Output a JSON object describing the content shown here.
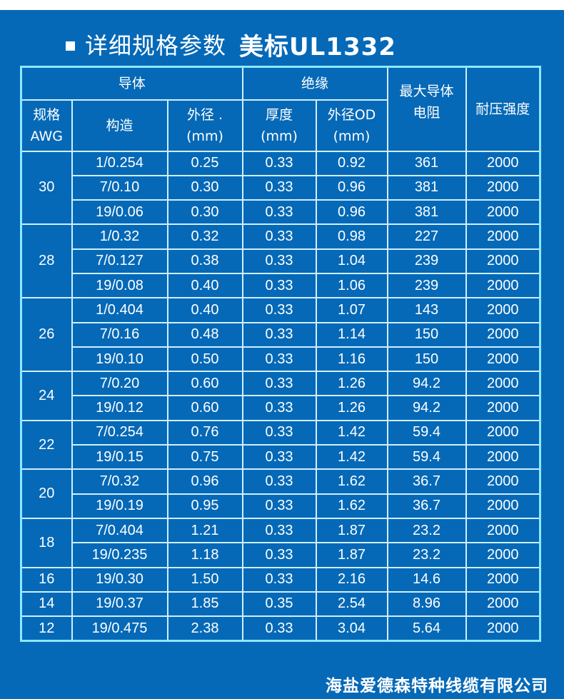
{
  "title": {
    "prefix": "详细规格参数",
    "standard": "美标UL1332"
  },
  "table": {
    "group_headers": {
      "conductor": "导体",
      "insulation": "绝缘",
      "max_resistance_line1": "最大导体",
      "max_resistance_line2": "电阻",
      "withstand_voltage": "耐压强度"
    },
    "sub_headers": {
      "awg_line1": "规格",
      "awg_line2": "AWG",
      "construction": "构造",
      "cond_od_line1": "外径 .",
      "cond_od_line2": "(mm)",
      "thickness_line1": "厚度",
      "thickness_line2": "(mm)",
      "ins_od_line1": "外径OD",
      "ins_od_line2": "(mm)"
    },
    "groups": [
      {
        "awg": "30",
        "rows": [
          {
            "construction": "1/0.254",
            "cond_od": "0.25",
            "thickness": "0.33",
            "ins_od": "0.92",
            "resistance": "361",
            "voltage": "2000"
          },
          {
            "construction": "7/0.10",
            "cond_od": "0.30",
            "thickness": "0.33",
            "ins_od": "0.96",
            "resistance": "381",
            "voltage": "2000"
          },
          {
            "construction": "19/0.06",
            "cond_od": "0.30",
            "thickness": "0.33",
            "ins_od": "0.96",
            "resistance": "381",
            "voltage": "2000"
          }
        ]
      },
      {
        "awg": "28",
        "rows": [
          {
            "construction": "1/0.32",
            "cond_od": "0.32",
            "thickness": "0.33",
            "ins_od": "0.98",
            "resistance": "227",
            "voltage": "2000"
          },
          {
            "construction": "7/0.127",
            "cond_od": "0.38",
            "thickness": "0.33",
            "ins_od": "1.04",
            "resistance": "239",
            "voltage": "2000"
          },
          {
            "construction": "19/0.08",
            "cond_od": "0.40",
            "thickness": "0.33",
            "ins_od": "1.06",
            "resistance": "239",
            "voltage": "2000"
          }
        ]
      },
      {
        "awg": "26",
        "rows": [
          {
            "construction": "1/0.404",
            "cond_od": "0.40",
            "thickness": "0.33",
            "ins_od": "1.07",
            "resistance": "143",
            "voltage": "2000"
          },
          {
            "construction": "7/0.16",
            "cond_od": "0.48",
            "thickness": "0.33",
            "ins_od": "1.14",
            "resistance": "150",
            "voltage": "2000"
          },
          {
            "construction": "19/0.10",
            "cond_od": "0.50",
            "thickness": "0.33",
            "ins_od": "1.16",
            "resistance": "150",
            "voltage": "2000"
          }
        ]
      },
      {
        "awg": "24",
        "rows": [
          {
            "construction": "7/0.20",
            "cond_od": "0.60",
            "thickness": "0.33",
            "ins_od": "1.26",
            "resistance": "94.2",
            "voltage": "2000"
          },
          {
            "construction": "19/0.12",
            "cond_od": "0.60",
            "thickness": "0.33",
            "ins_od": "1.26",
            "resistance": "94.2",
            "voltage": "2000"
          }
        ]
      },
      {
        "awg": "22",
        "rows": [
          {
            "construction": "7/0.254",
            "cond_od": "0.76",
            "thickness": "0.33",
            "ins_od": "1.42",
            "resistance": "59.4",
            "voltage": "2000"
          },
          {
            "construction": "19/0.15",
            "cond_od": "0.75",
            "thickness": "0.33",
            "ins_od": "1.42",
            "resistance": "59.4",
            "voltage": "2000"
          }
        ]
      },
      {
        "awg": "20",
        "rows": [
          {
            "construction": "7/0.32",
            "cond_od": "0.96",
            "thickness": "0.33",
            "ins_od": "1.62",
            "resistance": "36.7",
            "voltage": "2000"
          },
          {
            "construction": "19/0.19",
            "cond_od": "0.95",
            "thickness": "0.33",
            "ins_od": "1.62",
            "resistance": "36.7",
            "voltage": "2000"
          }
        ]
      },
      {
        "awg": "18",
        "rows": [
          {
            "construction": "7/0.404",
            "cond_od": "1.21",
            "thickness": "0.33",
            "ins_od": "1.87",
            "resistance": "23.2",
            "voltage": "2000"
          },
          {
            "construction": "19/0.235",
            "cond_od": "1.18",
            "thickness": "0.33",
            "ins_od": "1.87",
            "resistance": "23.2",
            "voltage": "2000"
          }
        ]
      },
      {
        "awg": "16",
        "rows": [
          {
            "construction": "19/0.30",
            "cond_od": "1.50",
            "thickness": "0.33",
            "ins_od": "2.16",
            "resistance": "14.6",
            "voltage": "2000"
          }
        ]
      },
      {
        "awg": "14",
        "rows": [
          {
            "construction": "19/0.37",
            "cond_od": "1.85",
            "thickness": "0.35",
            "ins_od": "2.54",
            "resistance": "8.96",
            "voltage": "2000"
          }
        ]
      },
      {
        "awg": "12",
        "rows": [
          {
            "construction": "19/0.475",
            "cond_od": "2.38",
            "thickness": "0.33",
            "ins_od": "3.04",
            "resistance": "5.64",
            "voltage": "2000"
          }
        ]
      }
    ]
  },
  "footer": {
    "company": "海盐爱德森特种线缆有限公司"
  },
  "colors": {
    "background": "#0569b7",
    "border": "#cfefff",
    "outer_border": "#8ee8ff",
    "text": "#ffffff"
  }
}
